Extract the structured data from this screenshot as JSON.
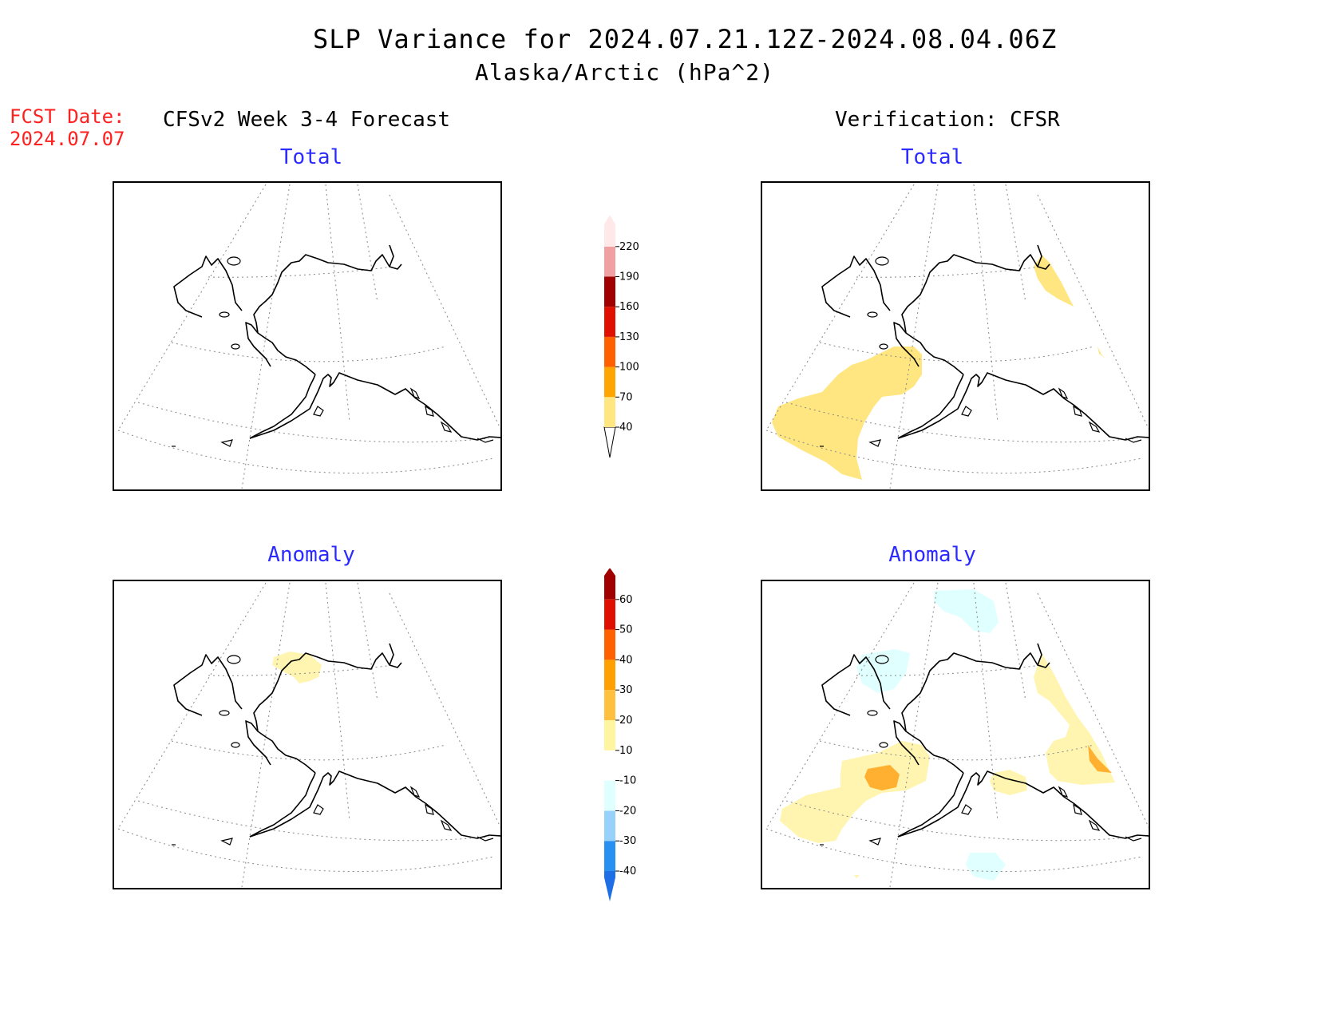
{
  "header": {
    "title": "SLP Variance for 2024.07.21.12Z-2024.08.04.06Z",
    "subtitle": "Alaska/Arctic (hPa^2)",
    "fcst_label": "FCST Date:",
    "fcst_date": "2024.07.07",
    "left_column": "CFSv2 Week 3-4 Forecast",
    "right_column": "Verification: CFSR"
  },
  "panels": {
    "fcst_total": {
      "title": "Total"
    },
    "verif_total": {
      "title": "Total"
    },
    "fcst_anomaly": {
      "title": "Anomaly"
    },
    "verif_anomaly": {
      "title": "Anomaly"
    }
  },
  "colorbars": {
    "total": {
      "levels": [
        "40",
        "70",
        "100",
        "130",
        "160",
        "190",
        "220"
      ],
      "colors": [
        "#ffe680",
        "#ffa500",
        "#ff6000",
        "#e01000",
        "#a00000",
        "#f0a0a0",
        "#ffe8e8"
      ],
      "below_color": "#ffffff"
    },
    "anomaly": {
      "levels": [
        "-40",
        "-30",
        "-20",
        "-10",
        "10",
        "20",
        "30",
        "40",
        "50",
        "60"
      ],
      "colors": [
        "#1e6ee6",
        "#2890f0",
        "#96d2fa",
        "#e0ffff",
        "#ffffff",
        "#fff5a0",
        "#ffc040",
        "#ffa000",
        "#ff6000",
        "#e01000",
        "#a00000"
      ]
    }
  },
  "colors": {
    "forecast_date": "#ff2020",
    "panel_title": "#2b2bff",
    "shade_yellow": "#ffe680",
    "shade_light_yellow": "#fff5b0",
    "shade_orange": "#ffb030",
    "shade_light_blue": "#e0ffff"
  }
}
